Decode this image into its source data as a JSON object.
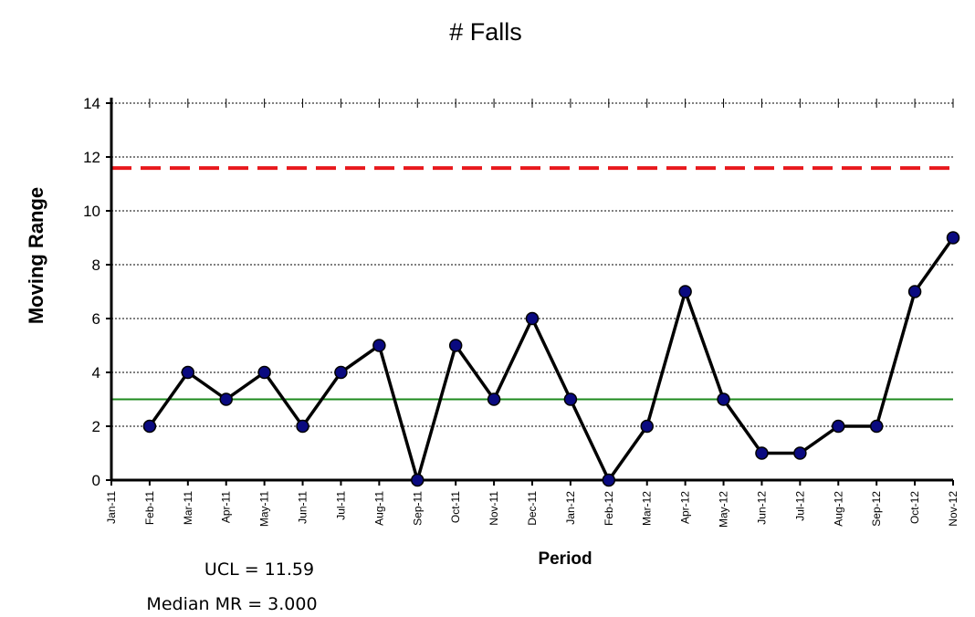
{
  "chart_data": {
    "type": "line",
    "title": "# Falls",
    "xlabel": "Period",
    "ylabel": "Moving Range",
    "ylim": [
      0,
      14
    ],
    "yticks": [
      0,
      2,
      4,
      6,
      8,
      10,
      12,
      14
    ],
    "grid": true,
    "categories": [
      "Jan-11",
      "Feb-11",
      "Mar-11",
      "Apr-11",
      "May-11",
      "Jun-11",
      "Jul-11",
      "Aug-11",
      "Sep-11",
      "Oct-11",
      "Nov-11",
      "Dec-11",
      "Jan-12",
      "Feb-12",
      "Mar-12",
      "Apr-12",
      "May-12",
      "Jun-12",
      "Jul-12",
      "Aug-12",
      "Sep-12",
      "Oct-12",
      "Nov-12"
    ],
    "series": [
      {
        "values": [
          null,
          2,
          4,
          3,
          4,
          2,
          4,
          5,
          0,
          5,
          3,
          6,
          3,
          0,
          2,
          7,
          3,
          1,
          1,
          2,
          2,
          7,
          9
        ],
        "color": "#000000",
        "marker_color": "#0a0a80"
      }
    ],
    "ucl": 11.59,
    "median_mr": 3.0,
    "ucl_color": "#e8181c",
    "median_color": "#1e8a1e",
    "annotations": {
      "ucl_text": "UCL = 11.59",
      "median_text": "Median MR = 3.000"
    }
  }
}
